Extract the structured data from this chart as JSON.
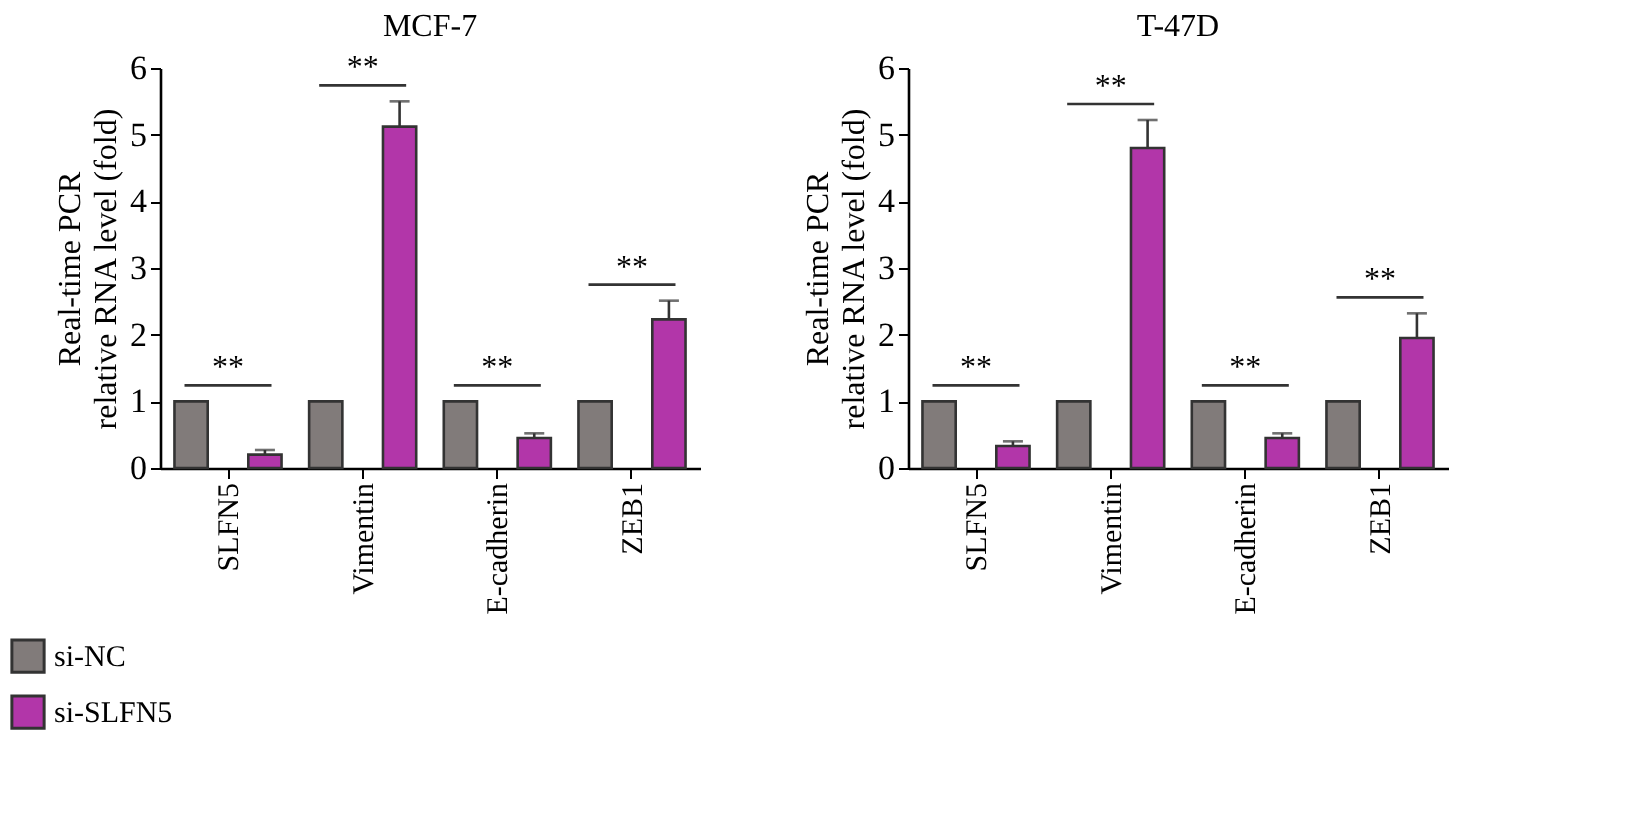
{
  "chart_data": [
    {
      "type": "bar",
      "title": "MCF-7",
      "ylabel": "Real-time PCR\nrelative RNA level (fold)",
      "categories": [
        "SLFN5",
        "Vimentin",
        "E-cadherin",
        "ZEB1"
      ],
      "ylim": [
        0,
        6
      ],
      "yticks": [
        0,
        1,
        2,
        3,
        4,
        5,
        6
      ],
      "grid": false,
      "legend": "bottom left",
      "series": [
        {
          "name": "si-NC",
          "color": "#817b7a",
          "values": [
            1,
            1,
            1,
            1
          ]
        },
        {
          "name": "si-SLFN5",
          "color": "#b236a9",
          "values": [
            0.2,
            5.12,
            0.45,
            2.23
          ],
          "errors": [
            0.07,
            0.38,
            0.07,
            0.28
          ]
        }
      ],
      "annotations": [
        "**",
        "**",
        "**",
        "**"
      ]
    },
    {
      "type": "bar",
      "title": "T-47D",
      "ylabel": "Real-time PCR\nrelative RNA level (fold)",
      "categories": [
        "SLFN5",
        "Vimentin",
        "E-cadherin",
        "ZEB1"
      ],
      "ylim": [
        0,
        6
      ],
      "yticks": [
        0,
        1,
        2,
        3,
        4,
        5,
        6
      ],
      "grid": false,
      "series": [
        {
          "name": "si-NC",
          "color": "#817b7a",
          "values": [
            1,
            1,
            1,
            1
          ]
        },
        {
          "name": "si-SLFN5",
          "color": "#b236a9",
          "values": [
            0.33,
            4.8,
            0.45,
            1.95
          ],
          "errors": [
            0.07,
            0.42,
            0.07,
            0.37
          ]
        }
      ],
      "annotations": [
        "**",
        "**",
        "**",
        "**"
      ]
    }
  ]
}
